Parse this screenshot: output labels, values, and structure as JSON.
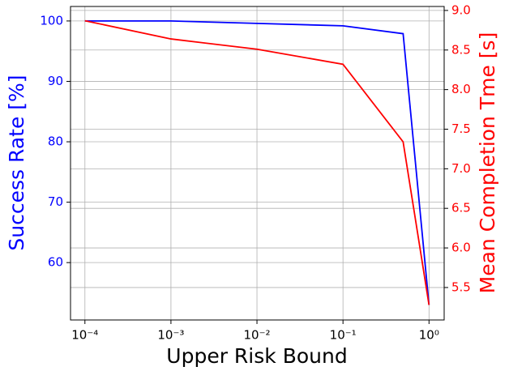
{
  "chart_data": {
    "type": "line",
    "x_label": "Upper Risk Bound",
    "y_label": "Success Rate [%]",
    "y2_label": "Mean Completion Tme [s]",
    "x": [
      0.0001,
      0.001,
      0.01,
      0.1,
      0.5,
      1
    ],
    "x_scale": "log",
    "series": [
      {
        "name": "Success Rate",
        "color": "#0000ff",
        "values": [
          100,
          100,
          99.6,
          99.2,
          97.9,
          53.0
        ]
      },
      {
        "name": "Mean Completion Time",
        "color": "#ff0000",
        "axis": "y2",
        "values": [
          8.87,
          8.64,
          8.51,
          8.32,
          7.34,
          5.28
        ]
      }
    ],
    "xlim": [
      6.8e-05,
      1.5
    ],
    "xticks": [
      {
        "value": 0.0001,
        "label": "10⁻⁴"
      },
      {
        "value": 0.001,
        "label": "10⁻³"
      },
      {
        "value": 0.01,
        "label": "10⁻²"
      },
      {
        "value": 0.1,
        "label": "10⁻¹"
      },
      {
        "value": 1,
        "label": "10⁰"
      }
    ],
    "ylim": [
      50.5,
      102.4
    ],
    "yticks": [
      60,
      70,
      80,
      90,
      100
    ],
    "y2lim": [
      5.09,
      9.05
    ],
    "y2ticks": [
      {
        "value": 5.5,
        "label": "5.5"
      },
      {
        "value": 6,
        "label": "6.0"
      },
      {
        "value": 6.5,
        "label": "6.5"
      },
      {
        "value": 7,
        "label": "7.0"
      },
      {
        "value": 7.5,
        "label": "7.5"
      },
      {
        "value": 8,
        "label": "8.0"
      },
      {
        "value": 8.5,
        "label": "8.5"
      },
      {
        "value": 9,
        "label": "9.0"
      }
    ],
    "grid": true
  }
}
